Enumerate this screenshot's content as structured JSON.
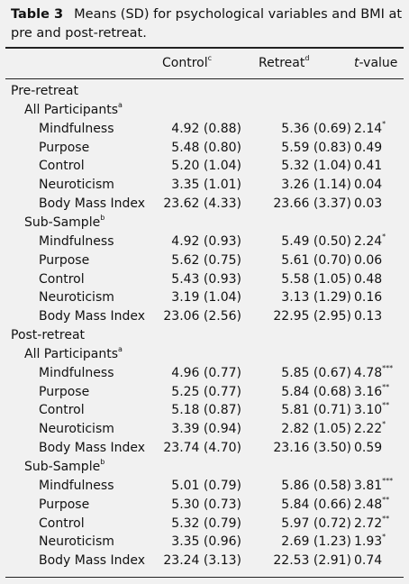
{
  "caption": {
    "label": "Table 3",
    "text": "Means (SD) for psychological variables and BMI at pre and post-retreat."
  },
  "header": {
    "control": "Control",
    "control_note": "c",
    "retreat": "Retreat",
    "retreat_note": "d",
    "t_italic": "t",
    "t_rest": "-value"
  },
  "sections": [
    {
      "title": "Pre-retreat",
      "groups": [
        {
          "title": "All Participants",
          "note": "a",
          "rows": [
            {
              "label": "Mindfulness",
              "control": "4.92 (0.88)",
              "retreat": "5.36 (0.69)",
              "t": "2.14",
              "sig": "*"
            },
            {
              "label": "Purpose",
              "control": "5.48 (0.80)",
              "retreat": "5.59 (0.83)",
              "t": "0.49"
            },
            {
              "label": "Control",
              "control": "5.20 (1.04)",
              "retreat": "5.32 (1.04)",
              "t": "0.41"
            },
            {
              "label": "Neuroticism",
              "control": "3.35 (1.01)",
              "retreat": "3.26 (1.14)",
              "t": "0.04"
            },
            {
              "label": "Body Mass Index",
              "control": "23.62 (4.33)",
              "retreat": "23.66 (3.37)",
              "t": "0.03"
            }
          ]
        },
        {
          "title": "Sub-Sample",
          "note": "b",
          "rows": [
            {
              "label": "Mindfulness",
              "control": "4.92 (0.93)",
              "retreat": "5.49 (0.50)",
              "t": "2.24",
              "sig": "*"
            },
            {
              "label": "Purpose",
              "control": "5.62 (0.75)",
              "retreat": "5.61 (0.70)",
              "t": "0.06"
            },
            {
              "label": "Control",
              "control": "5.43 (0.93)",
              "retreat": "5.58 (1.05)",
              "t": "0.48"
            },
            {
              "label": "Neuroticism",
              "control": "3.19 (1.04)",
              "retreat": "3.13 (1.29)",
              "t": "0.16"
            },
            {
              "label": "Body Mass Index",
              "control": "23.06 (2.56)",
              "retreat": "22.95 (2.95)",
              "t": "0.13"
            }
          ]
        }
      ]
    },
    {
      "title": "Post-retreat",
      "groups": [
        {
          "title": "All Participants",
          "note": "a",
          "rows": [
            {
              "label": "Mindfulness",
              "control": "4.96 (0.77)",
              "retreat": "5.85 (0.67)",
              "t": "4.78",
              "sig": "***"
            },
            {
              "label": "Purpose",
              "control": "5.25 (0.77)",
              "retreat": "5.84 (0.68)",
              "t": "3.16",
              "sig": "**"
            },
            {
              "label": "Control",
              "control": "5.18 (0.87)",
              "retreat": "5.81 (0.71)",
              "t": "3.10",
              "sig": "**"
            },
            {
              "label": "Neuroticism",
              "control": "3.39 (0.94)",
              "retreat": "2.82 (1.05)",
              "t": "2.22",
              "sig": "*"
            },
            {
              "label": "Body Mass Index",
              "control": "23.74 (4.70)",
              "retreat": "23.16 (3.50)",
              "t": "0.59"
            }
          ]
        },
        {
          "title": "Sub-Sample",
          "note": "b",
          "rows": [
            {
              "label": "Mindfulness",
              "control": "5.01 (0.79)",
              "retreat": "5.86 (0.58)",
              "t": "3.81",
              "sig": "***"
            },
            {
              "label": "Purpose",
              "control": "5.30 (0.73)",
              "retreat": "5.84 (0.66)",
              "t": "2.48",
              "sig": "**"
            },
            {
              "label": "Control",
              "control": "5.32 (0.79)",
              "retreat": "5.97 (0.72)",
              "t": "2.72",
              "sig": "**"
            },
            {
              "label": "Neuroticism",
              "control": "3.35 (0.96)",
              "retreat": "2.69 (1.23)",
              "t": "1.93",
              "sig": "*"
            },
            {
              "label": "Body Mass Index",
              "control": "23.24 (3.13)",
              "retreat": "22.53 (2.91)",
              "t": "0.74"
            }
          ]
        }
      ]
    }
  ]
}
